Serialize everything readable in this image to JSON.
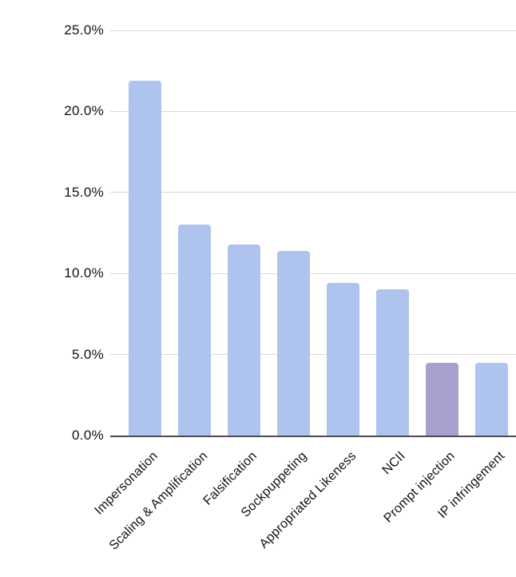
{
  "chart_data": {
    "type": "bar",
    "title": "",
    "xlabel": "",
    "ylabel": "",
    "categories": [
      "Impersonation",
      "Scaling & Amplification",
      "Falsification",
      "Sockpuppeting",
      "Appropriated Likeness",
      "NCII",
      "Prompt injection",
      "IP infringement"
    ],
    "values": [
      21.9,
      13.0,
      11.8,
      11.4,
      9.4,
      9.0,
      4.5,
      4.5
    ],
    "value_unit": "%",
    "ylim": [
      0,
      25
    ],
    "y_ticks": [
      {
        "value": 25,
        "label": "25.0%"
      },
      {
        "value": 20,
        "label": "20.0%"
      },
      {
        "value": 15,
        "label": "15.0%"
      },
      {
        "value": 10,
        "label": "10.0%"
      },
      {
        "value": 5,
        "label": "5.0%"
      },
      {
        "value": 0,
        "label": "0.0%"
      }
    ],
    "grid": true,
    "legend": "none",
    "highlight_index": 6,
    "colors": {
      "bar_default": "#aec3ee",
      "bar_highlight": "#a8a1d0",
      "gridline": "#d9d9d9",
      "axis_line": "#4d4d4d",
      "tick_label": "#111111",
      "background": "#ffffff"
    }
  }
}
